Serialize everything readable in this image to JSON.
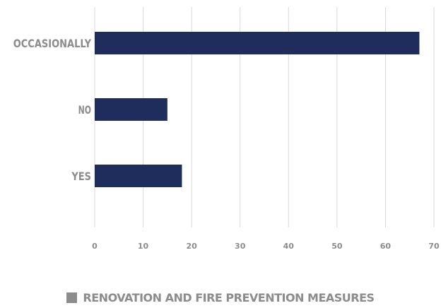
{
  "chart_data": {
    "type": "bar",
    "orientation": "horizontal",
    "categories": [
      "OCCASIONALLY",
      "NO",
      "YES"
    ],
    "series": [
      {
        "name": "RENOVATION AND FIRE PREVENTION MEASURES",
        "values": [
          67,
          15,
          18
        ]
      }
    ],
    "xlim": [
      0,
      70
    ],
    "xticks": [
      "0",
      "10",
      "20",
      "30",
      "40",
      "50",
      "60",
      "70"
    ],
    "title": "",
    "xlabel": "",
    "ylabel": "",
    "grid": "vertical",
    "legend_position": "bottom",
    "colors": {
      "bar": "#1f2d5c",
      "grid": "#d9d9d9",
      "text": "#8c8c8c",
      "legend_swatch": "#8c8c8c"
    }
  }
}
